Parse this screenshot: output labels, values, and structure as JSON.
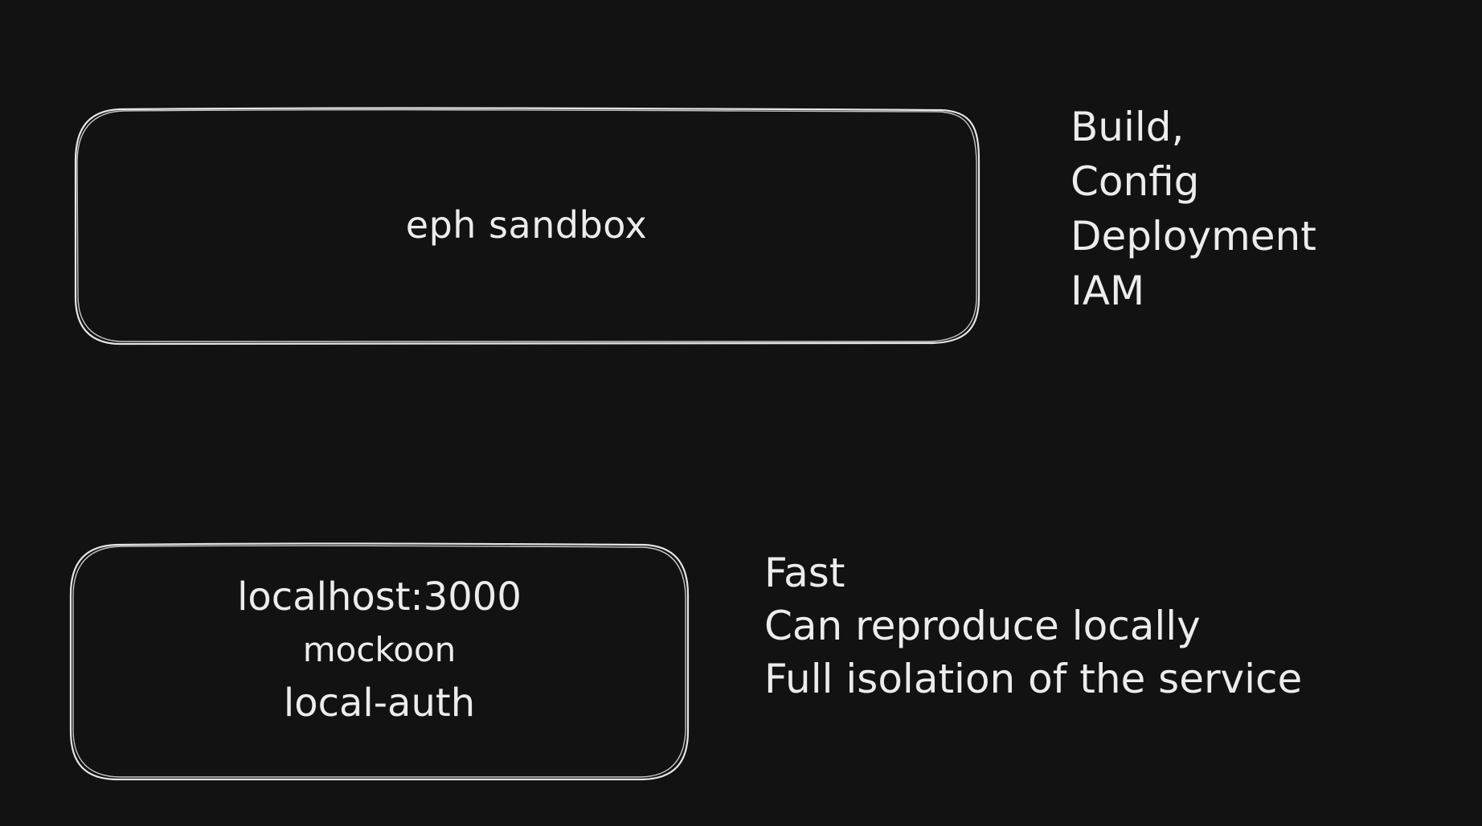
{
  "diagram": {
    "background": "#121212",
    "stroke_color": "#e6e6e6",
    "text_color": "#ececec",
    "top_box": {
      "label": "eph sandbox"
    },
    "top_notes": [
      "Build,",
      "Config",
      "Deployment",
      "IAM"
    ],
    "bottom_box": {
      "lines": [
        "localhost:3000",
        "mockoon",
        "local-auth"
      ]
    },
    "bottom_notes": [
      "Fast",
      "Can reproduce locally",
      "Full isolation of the service"
    ]
  }
}
